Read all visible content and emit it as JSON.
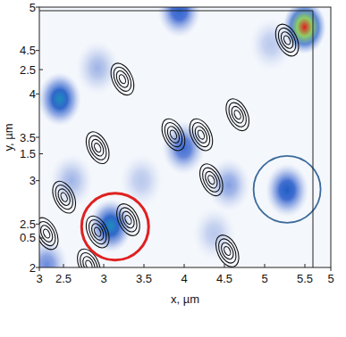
{
  "chart_data": {
    "type": "heatmap",
    "xlabel": "x, µm",
    "ylabel": "y, µm",
    "xlim": [
      3,
      5
    ],
    "xticks": [
      3,
      5
    ],
    "ylim": [
      2,
      5
    ],
    "yticks": [
      2,
      2.5,
      3,
      3.5,
      4,
      4.5,
      5
    ],
    "x2lim": [
      2.2,
      5.6
    ],
    "x2ticks": [
      2.5,
      3,
      3.5,
      4,
      4.5,
      5,
      5.5
    ],
    "y2lim": [
      0.15,
      3.2
    ],
    "y2ticks": [
      0.5,
      1.5,
      2.5
    ],
    "spots": [
      {
        "x": 3.96,
        "y": 4.96,
        "intensity": 0.5
      },
      {
        "x": 4.82,
        "y": 4.77,
        "intensity": 1.0
      },
      {
        "x": 3.14,
        "y": 3.94,
        "intensity": 0.62
      },
      {
        "x": 3.4,
        "y": 4.3,
        "intensity": 0.25
      },
      {
        "x": 3.99,
        "y": 3.38,
        "intensity": 0.45
      },
      {
        "x": 4.7,
        "y": 2.89,
        "intensity": 0.55
      },
      {
        "x": 3.49,
        "y": 2.48,
        "intensity": 0.62
      },
      {
        "x": 3.05,
        "y": 2.03,
        "intensity": 0.35
      },
      {
        "x": 4.59,
        "y": 4.57,
        "intensity": 0.2
      },
      {
        "x": 4.2,
        "y": 2.39,
        "intensity": 0.2
      },
      {
        "x": 3.7,
        "y": 3.0,
        "intensity": 0.2
      },
      {
        "x": 3.22,
        "y": 3.0,
        "intensity": 0.25
      },
      {
        "x": 4.3,
        "y": 2.95,
        "intensity": 0.3
      }
    ],
    "contours": [
      {
        "x": 3.57,
        "y": 4.17
      },
      {
        "x": 3.4,
        "y": 3.38
      },
      {
        "x": 3.92,
        "y": 3.53
      },
      {
        "x": 4.11,
        "y": 3.53
      },
      {
        "x": 4.36,
        "y": 3.76
      },
      {
        "x": 4.18,
        "y": 3.01
      },
      {
        "x": 4.7,
        "y": 4.62
      },
      {
        "x": 3.17,
        "y": 2.81
      },
      {
        "x": 3.4,
        "y": 2.41
      },
      {
        "x": 3.61,
        "y": 2.55
      },
      {
        "x": 4.29,
        "y": 2.19
      },
      {
        "x": 3.34,
        "y": 2.03
      },
      {
        "x": 3.05,
        "y": 2.39
      }
    ],
    "circles": [
      {
        "x": 3.52,
        "y": 2.47,
        "r": 0.23,
        "color": "#e02020"
      },
      {
        "x": 4.7,
        "y": 2.9,
        "r": 0.23,
        "color": "#3a6a9a"
      }
    ]
  }
}
